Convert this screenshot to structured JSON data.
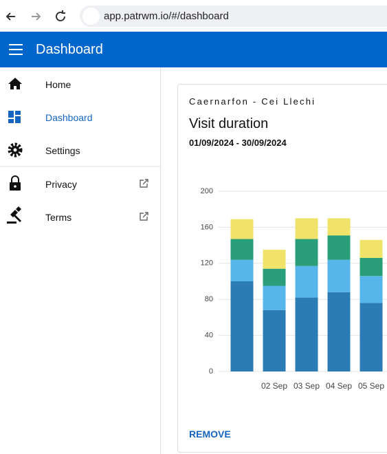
{
  "browser": {
    "url": "app.patrwm.io/#/dashboard"
  },
  "app_bar": {
    "title": "Dashboard"
  },
  "nav": {
    "items": [
      "Home",
      "Dashboard",
      "Settings",
      "Privacy",
      "Terms"
    ]
  },
  "card": {
    "overline": "Caernarfon - Cei Llechi",
    "title": "Visit duration",
    "date_range": "01/09/2024 - 30/09/2024",
    "action": "REMOVE"
  },
  "chart_data": {
    "type": "stacked-bar",
    "categories": [
      null,
      "02 Sep",
      "03 Sep",
      "04 Sep",
      "05 Sep"
    ],
    "series": [
      {
        "color": "#2b7bb4",
        "values": [
          100,
          68,
          82,
          88,
          76
        ]
      },
      {
        "color": "#56b5e9",
        "values": [
          24,
          27,
          35,
          36,
          30
        ]
      },
      {
        "color": "#2a9e78",
        "values": [
          23,
          19,
          30,
          27,
          20
        ]
      },
      {
        "color": "#f1e36a",
        "values": [
          22,
          21,
          23,
          19,
          20
        ]
      }
    ],
    "ylim": [
      0,
      200
    ],
    "yticks": [
      0,
      40,
      80,
      120,
      160,
      200
    ],
    "grid": true
  }
}
